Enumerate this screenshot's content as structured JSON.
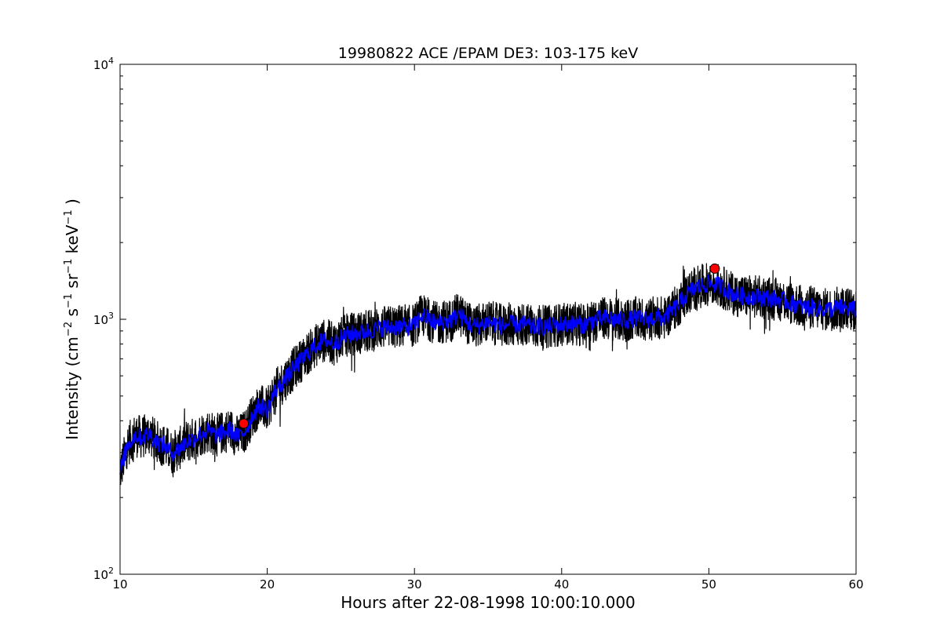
{
  "chart_data": {
    "type": "line",
    "title": "19980822 ACE /EPAM DE3: 103-175 keV",
    "xlabel": "Hours after 22-08-1998 10:00:10.000",
    "ylabel": {
      "prefix": "Intensity (cm",
      "sup1": "−2",
      "part2": " s",
      "sup2": "−1",
      "part3": " sr",
      "sup3": "−1",
      "part4": " keV",
      "sup4": "−1",
      "suffix": " )"
    },
    "xlim": [
      10,
      60
    ],
    "ylim": [
      100,
      10000
    ],
    "yscale": "log",
    "grid": false,
    "x_ticks": [
      "10",
      "20",
      "30",
      "40",
      "50",
      "60"
    ],
    "y_ticks": [
      {
        "base": "10",
        "exp": "2",
        "value": 100
      },
      {
        "base": "10",
        "exp": "3",
        "value": 1000
      },
      {
        "base": "10",
        "exp": "4",
        "value": 10000
      }
    ],
    "series": [
      {
        "color": "#000000",
        "style": "raw",
        "x": [
          10,
          10.5,
          11,
          11.5,
          12,
          12.5,
          13,
          13.5,
          14,
          14.5,
          15,
          15.5,
          16,
          16.5,
          17,
          17.5,
          18,
          18.5,
          19,
          19.5,
          20,
          20.5,
          21,
          21.5,
          22,
          22.5,
          23,
          23.5,
          24,
          24.5,
          25,
          25.5,
          26,
          26.5,
          27,
          27.5,
          28,
          28.5,
          29,
          29.5,
          30,
          30.5,
          31,
          31.5,
          32,
          32.5,
          33,
          33.5,
          34,
          34.5,
          35,
          35.5,
          36,
          36.5,
          37,
          37.5,
          38,
          38.5,
          39,
          39.5,
          40,
          40.5,
          41,
          41.5,
          42,
          42.5,
          43,
          43.5,
          44,
          44.5,
          45,
          45.5,
          46,
          46.5,
          47,
          47.5,
          48,
          48.5,
          49,
          49.5,
          50,
          50.5,
          51,
          51.5,
          52,
          52.5,
          53,
          53.5,
          54,
          54.5,
          55,
          55.5,
          56,
          56.5,
          57,
          57.5,
          58,
          58.5,
          59,
          59.5,
          60
        ],
        "y": [
          250,
          320,
          350,
          345,
          355,
          330,
          320,
          300,
          310,
          330,
          340,
          355,
          365,
          350,
          360,
          370,
          345,
          365,
          420,
          460,
          440,
          520,
          560,
          610,
          660,
          710,
          760,
          810,
          830,
          800,
          840,
          870,
          880,
          890,
          900,
          920,
          930,
          930,
          940,
          930,
          950,
          1040,
          1000,
          960,
          980,
          990,
          1050,
          980,
          940,
          950,
          980,
          960,
          940,
          960,
          950,
          960,
          930,
          940,
          930,
          950,
          950,
          960,
          960,
          950,
          980,
          1000,
          1010,
          1000,
          990,
          990,
          1010,
          1000,
          1000,
          1020,
          1010,
          1080,
          1150,
          1250,
          1320,
          1350,
          1380,
          1370,
          1330,
          1270,
          1240,
          1230,
          1230,
          1220,
          1210,
          1200,
          1190,
          1160,
          1140,
          1110,
          1110,
          1100,
          1090,
          1100,
          1110,
          1100,
          1090
        ]
      },
      {
        "color": "#0000ff",
        "style": "smoothed",
        "x": [
          10,
          10.5,
          11,
          11.5,
          12,
          12.5,
          13,
          13.5,
          14,
          14.5,
          15,
          15.5,
          16,
          16.5,
          17,
          17.5,
          18,
          18.5,
          19,
          19.5,
          20,
          20.5,
          21,
          21.5,
          22,
          22.5,
          23,
          23.5,
          24,
          24.5,
          25,
          25.5,
          26,
          26.5,
          27,
          27.5,
          28,
          28.5,
          29,
          29.5,
          30,
          30.5,
          31,
          31.5,
          32,
          32.5,
          33,
          33.5,
          34,
          34.5,
          35,
          35.5,
          36,
          36.5,
          37,
          37.5,
          38,
          38.5,
          39,
          39.5,
          40,
          40.5,
          41,
          41.5,
          42,
          42.5,
          43,
          43.5,
          44,
          44.5,
          45,
          45.5,
          46,
          46.5,
          47,
          47.5,
          48,
          48.5,
          49,
          49.5,
          50,
          50.5,
          51,
          51.5,
          52,
          52.5,
          53,
          53.5,
          54,
          54.5,
          55,
          55.5,
          56,
          56.5,
          57,
          57.5,
          58,
          58.5,
          59,
          59.5,
          60
        ],
        "y": [
          250,
          320,
          350,
          345,
          355,
          330,
          320,
          300,
          310,
          330,
          340,
          355,
          365,
          350,
          360,
          370,
          345,
          365,
          420,
          460,
          440,
          520,
          560,
          610,
          660,
          710,
          760,
          810,
          830,
          800,
          840,
          870,
          880,
          890,
          900,
          920,
          930,
          930,
          940,
          930,
          950,
          1040,
          1000,
          960,
          980,
          990,
          1050,
          980,
          940,
          950,
          980,
          960,
          940,
          960,
          950,
          960,
          930,
          940,
          930,
          950,
          950,
          960,
          960,
          950,
          980,
          1000,
          1010,
          1000,
          990,
          990,
          1010,
          1000,
          1000,
          1020,
          1010,
          1080,
          1150,
          1250,
          1320,
          1350,
          1380,
          1370,
          1330,
          1270,
          1240,
          1230,
          1230,
          1220,
          1210,
          1200,
          1190,
          1160,
          1140,
          1110,
          1110,
          1100,
          1090,
          1100,
          1110,
          1100,
          1090
        ]
      }
    ],
    "markers": [
      {
        "x": 18.4,
        "y": 390,
        "color": "#ff0000"
      },
      {
        "x": 50.4,
        "y": 1580,
        "color": "#ff0000"
      }
    ]
  }
}
